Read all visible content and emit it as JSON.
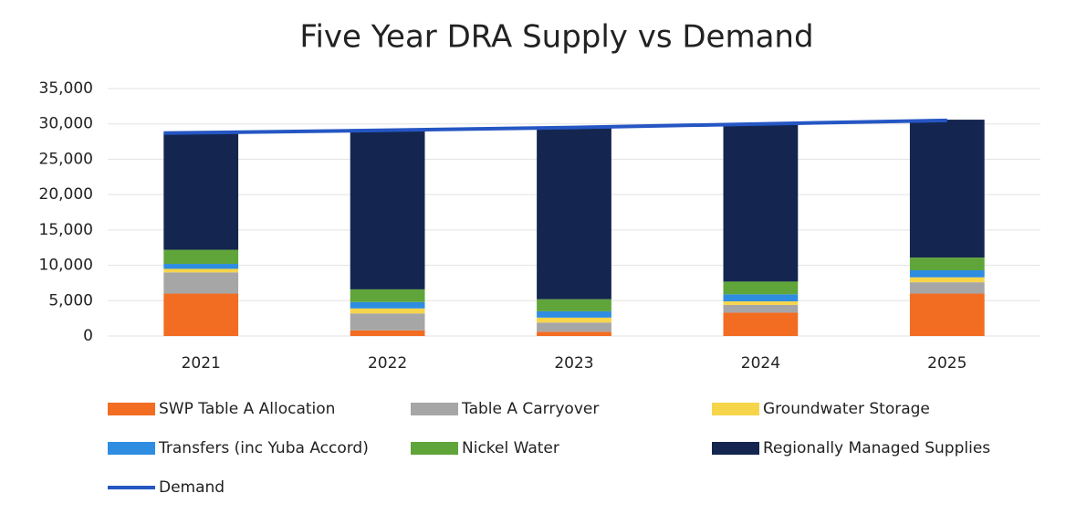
{
  "chart_data": {
    "type": "stacked_bar_line",
    "title": "Five Year DRA Supply vs Demand",
    "categories": [
      "2021",
      "2022",
      "2023",
      "2024",
      "2025"
    ],
    "series": [
      {
        "name": "SWP Table A Allocation",
        "color": "#f26c22",
        "values": [
          6000,
          800,
          600,
          3300,
          6000
        ]
      },
      {
        "name": "Table A Carryover",
        "color": "#a6a6a6",
        "values": [
          3000,
          2400,
          1300,
          1100,
          1600
        ]
      },
      {
        "name": "Groundwater Storage",
        "color": "#f7d54a",
        "values": [
          500,
          700,
          700,
          500,
          700
        ]
      },
      {
        "name": "Transfers (inc Yuba Accord)",
        "color": "#2e8de0",
        "values": [
          700,
          900,
          900,
          1000,
          1000
        ]
      },
      {
        "name": "Nickel Water",
        "color": "#5fa53a",
        "values": [
          2000,
          1800,
          1700,
          1800,
          1800
        ]
      },
      {
        "name": "Regionally Managed Supplies",
        "color": "#14264f",
        "values": [
          16500,
          22600,
          24400,
          22300,
          19500
        ]
      },
      {
        "name": "Demand",
        "type": "line",
        "color": "#2556c4",
        "values": [
          28700,
          29100,
          29500,
          30000,
          30500
        ]
      }
    ],
    "ylim": [
      0,
      35000
    ],
    "yticks": [
      0,
      {
        "value": 5000,
        "label": "5,000"
      },
      {
        "value": 10000,
        "label": "10,000"
      },
      {
        "value": 15000,
        "label": "15,000"
      },
      {
        "value": 20000,
        "label": "20,000"
      },
      {
        "value": 25000,
        "label": "25,000"
      },
      {
        "value": 30000,
        "label": "30,000"
      },
      {
        "value": 35000,
        "label": "35,000"
      }
    ],
    "grid": true,
    "legend": "bottom"
  }
}
